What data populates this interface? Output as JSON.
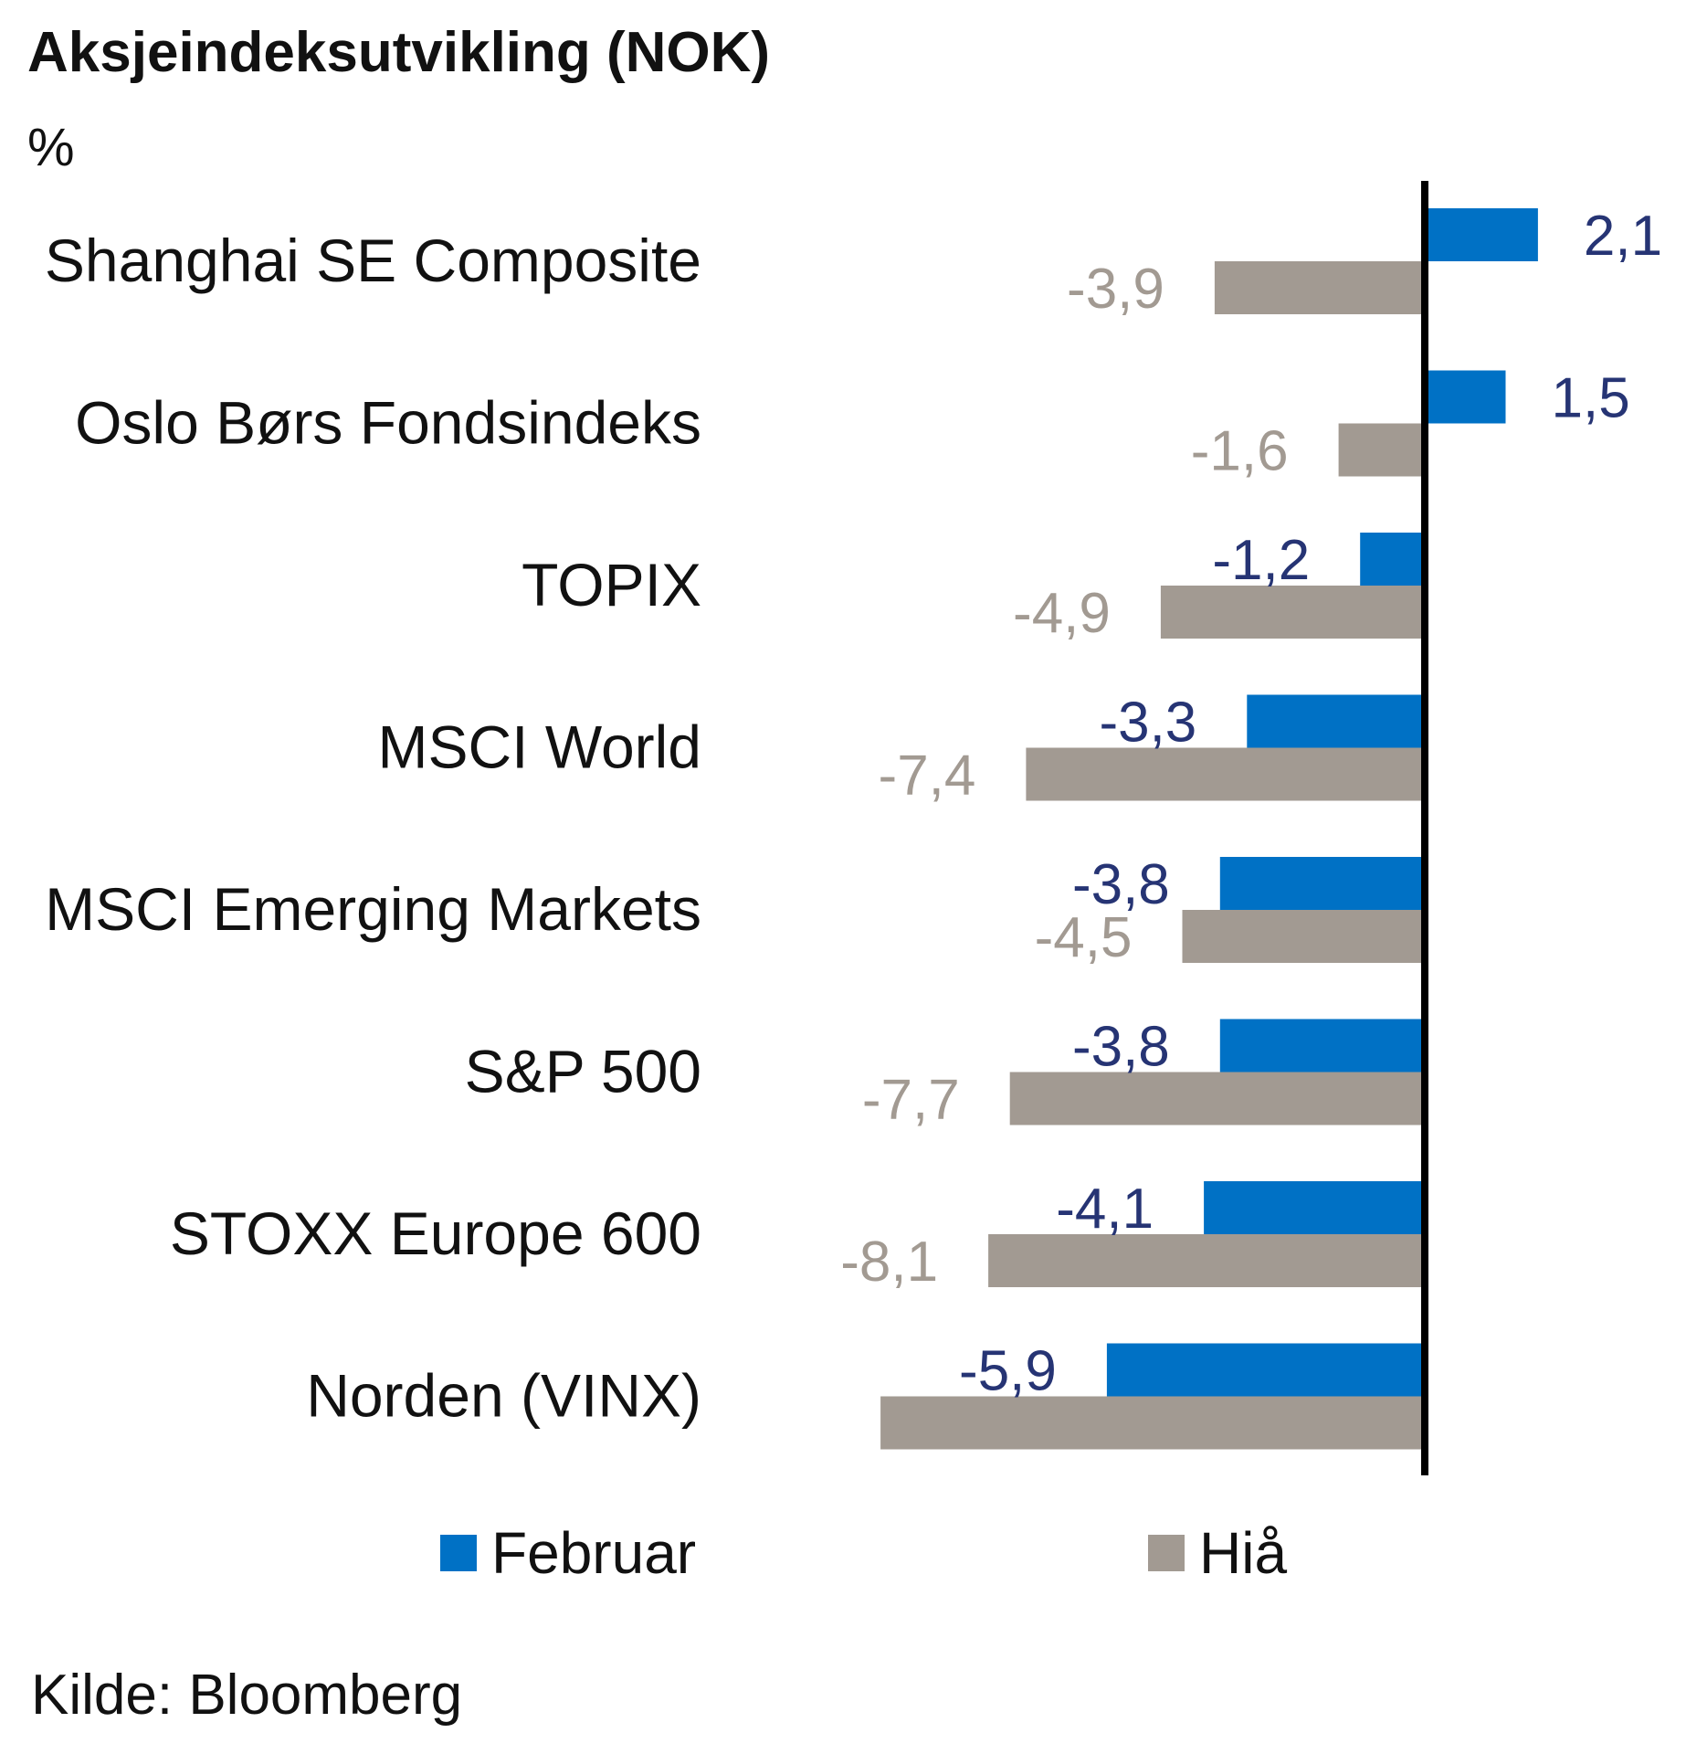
{
  "chart_data": {
    "type": "bar",
    "orientation": "horizontal",
    "title": "Aksjeindeksutvikling (NOK)",
    "unit": "%",
    "categories": [
      "Shanghai SE Composite",
      "Oslo Børs Fondsindeks",
      "TOPIX",
      "MSCI World",
      "MSCI Emerging Markets",
      "S&P 500",
      "STOXX Europe 600",
      "Norden (VINX)"
    ],
    "series": [
      {
        "name": "Februar",
        "values": [
          2.1,
          1.5,
          -1.2,
          -3.3,
          -3.8,
          -3.8,
          -4.1,
          -5.9
        ],
        "labels": [
          "2,1",
          "1,5",
          "-1,2",
          "-3,3",
          "-3,8",
          "-3,8",
          "-4,1",
          "-5,9"
        ],
        "color": "#0071c5",
        "label_color": "#263474"
      },
      {
        "name": "Hiå",
        "values": [
          -3.9,
          -1.6,
          -4.9,
          -7.4,
          -4.5,
          -7.7,
          -8.1,
          -10.1
        ],
        "labels": [
          "-3,9",
          "-1,6",
          "-4,9",
          "-7,4",
          "-4,5",
          "-7,7",
          "-8,1",
          ""
        ],
        "color": "#a29a92",
        "label_color": "#a29a92"
      }
    ],
    "legend_position": "bottom",
    "grid": false,
    "source": "Kilde: Bloomberg"
  }
}
